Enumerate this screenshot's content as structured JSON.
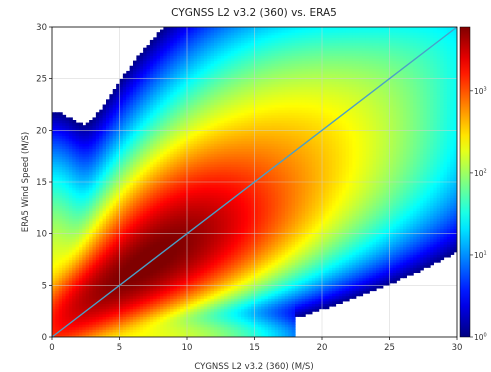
{
  "chart_data": {
    "type": "heatmap",
    "title": "CYGNSS L2 v3.2 (360) vs. ERA5",
    "xlabel": "CYGNSS L2 v3.2 (360)  (M/S)",
    "ylabel": "ERA5 Wind Speed (M/S)",
    "xlim": [
      0,
      30
    ],
    "ylim": [
      0,
      30
    ],
    "x_ticks": [
      0,
      5,
      10,
      15,
      20,
      25,
      30
    ],
    "y_ticks": [
      0,
      5,
      10,
      15,
      20,
      25,
      30
    ],
    "grid": true,
    "colormap": "jet",
    "colorbar": {
      "scale": "log",
      "range": [
        1,
        6000
      ],
      "ticks": [
        {
          "base": "10",
          "exp": "0",
          "value": 1
        },
        {
          "base": "10",
          "exp": "1",
          "value": 10
        },
        {
          "base": "10",
          "exp": "2",
          "value": 100
        },
        {
          "base": "10",
          "exp": "3",
          "value": 1000
        }
      ]
    },
    "reference_line": {
      "type": "one-to-one",
      "from": [
        0,
        0
      ],
      "to": [
        30,
        30
      ],
      "color": "#4a9fc8"
    },
    "density_peak": {
      "x": 7.5,
      "y": 7.5
    }
  }
}
